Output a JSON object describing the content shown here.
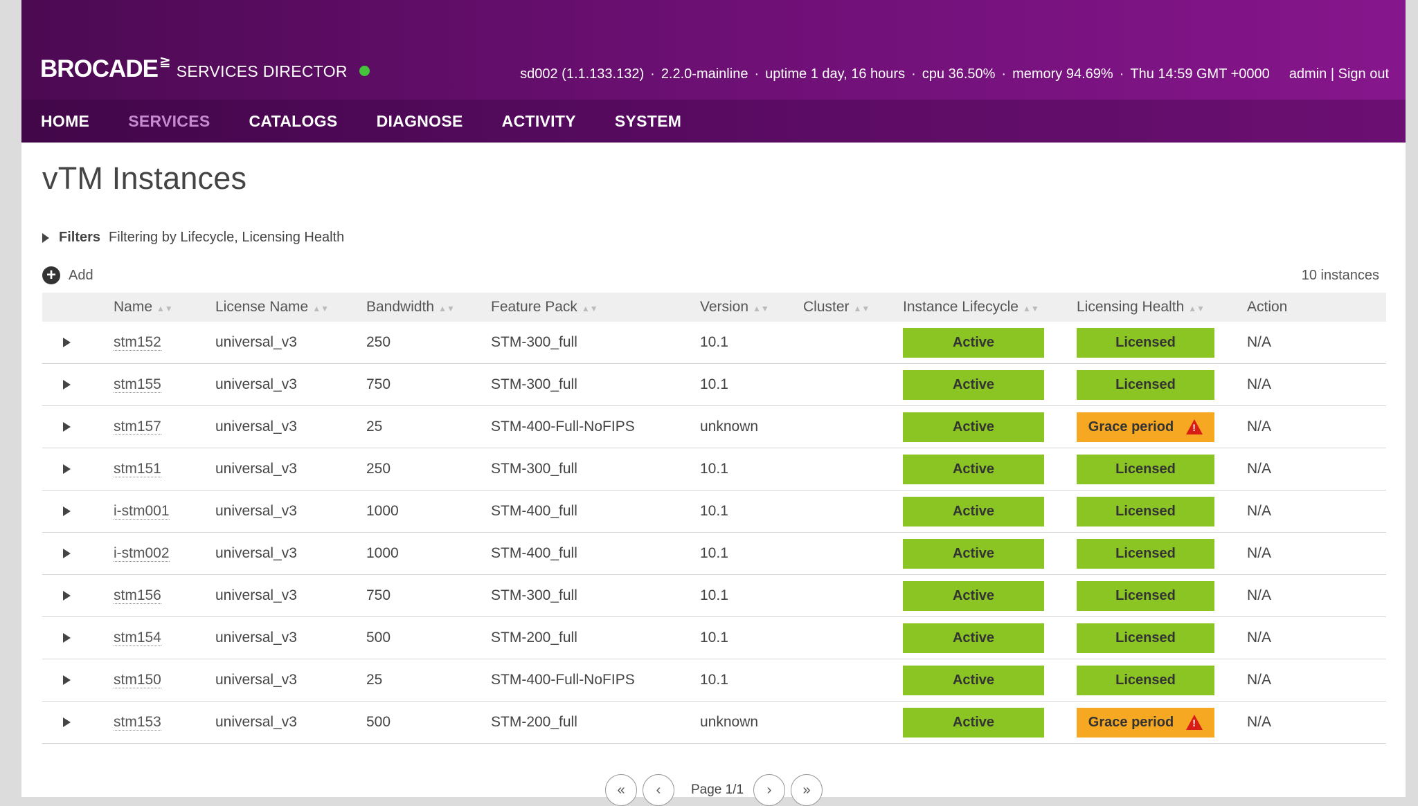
{
  "brand": {
    "name": "BROCADE",
    "mark": "≧",
    "product": "SERVICES DIRECTOR"
  },
  "sysinfo": {
    "host": "sd002 (1.1.133.132)",
    "version": "2.2.0-mainline",
    "uptime": "uptime 1 day, 16 hours",
    "cpu": "cpu 36.50%",
    "memory": "memory 94.69%",
    "time": "Thu 14:59 GMT +0000",
    "user": "admin",
    "signout": "Sign out"
  },
  "nav": [
    {
      "label": "HOME"
    },
    {
      "label": "SERVICES"
    },
    {
      "label": "CATALOGS"
    },
    {
      "label": "DIAGNOSE"
    },
    {
      "label": "ACTIVITY"
    },
    {
      "label": "SYSTEM"
    }
  ],
  "nav_active": "SERVICES",
  "page": {
    "title": "vTM Instances",
    "filters_label": "Filters",
    "filters_text": "Filtering by Lifecycle, Licensing Health",
    "add_label": "Add",
    "count": "10 instances"
  },
  "table": {
    "columns": [
      "Name",
      "License Name",
      "Bandwidth",
      "Feature Pack",
      "Version",
      "Cluster",
      "Instance Lifecycle",
      "Licensing Health",
      "Action"
    ],
    "rows": [
      {
        "name": "stm152",
        "license": "universal_v3",
        "bandwidth": "250",
        "feature": "STM-300_full",
        "version": "10.1",
        "cluster": "",
        "lifecycle": "Active",
        "health": "Licensed",
        "action": "N/A"
      },
      {
        "name": "stm155",
        "license": "universal_v3",
        "bandwidth": "750",
        "feature": "STM-300_full",
        "version": "10.1",
        "cluster": "",
        "lifecycle": "Active",
        "health": "Licensed",
        "action": "N/A"
      },
      {
        "name": "stm157",
        "license": "universal_v3",
        "bandwidth": "25",
        "feature": "STM-400-Full-NoFIPS",
        "version": "unknown",
        "cluster": "",
        "lifecycle": "Active",
        "health": "Grace period",
        "action": "N/A"
      },
      {
        "name": "stm151",
        "license": "universal_v3",
        "bandwidth": "250",
        "feature": "STM-300_full",
        "version": "10.1",
        "cluster": "",
        "lifecycle": "Active",
        "health": "Licensed",
        "action": "N/A"
      },
      {
        "name": "i-stm001",
        "license": "universal_v3",
        "bandwidth": "1000",
        "feature": "STM-400_full",
        "version": "10.1",
        "cluster": "",
        "lifecycle": "Active",
        "health": "Licensed",
        "action": "N/A"
      },
      {
        "name": "i-stm002",
        "license": "universal_v3",
        "bandwidth": "1000",
        "feature": "STM-400_full",
        "version": "10.1",
        "cluster": "",
        "lifecycle": "Active",
        "health": "Licensed",
        "action": "N/A"
      },
      {
        "name": "stm156",
        "license": "universal_v3",
        "bandwidth": "750",
        "feature": "STM-300_full",
        "version": "10.1",
        "cluster": "",
        "lifecycle": "Active",
        "health": "Licensed",
        "action": "N/A"
      },
      {
        "name": "stm154",
        "license": "universal_v3",
        "bandwidth": "500",
        "feature": "STM-200_full",
        "version": "10.1",
        "cluster": "",
        "lifecycle": "Active",
        "health": "Licensed",
        "action": "N/A"
      },
      {
        "name": "stm150",
        "license": "universal_v3",
        "bandwidth": "25",
        "feature": "STM-400-Full-NoFIPS",
        "version": "10.1",
        "cluster": "",
        "lifecycle": "Active",
        "health": "Licensed",
        "action": "N/A"
      },
      {
        "name": "stm153",
        "license": "universal_v3",
        "bandwidth": "500",
        "feature": "STM-200_full",
        "version": "unknown",
        "cluster": "",
        "lifecycle": "Active",
        "health": "Grace period",
        "action": "N/A"
      }
    ]
  },
  "pager": {
    "first": "«",
    "prev": "‹",
    "label": "Page 1/1",
    "next": "›",
    "last": "»"
  },
  "colors": {
    "header_start": "#4c0a52",
    "header_end": "#86168c",
    "nav_active": "#c58bd0",
    "status_ok": "#45c33a",
    "pill_green": "#8bc523",
    "pill_orange": "#f7a823",
    "warning_red": "#d81e14"
  }
}
